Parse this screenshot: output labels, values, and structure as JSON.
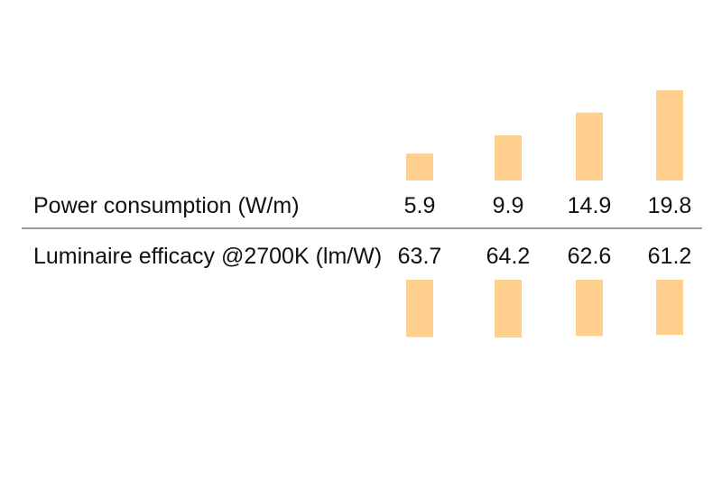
{
  "chart_data": [
    {
      "type": "bar",
      "ylabel": "Power consumption (W/m)",
      "series": [
        {
          "values": [
            5.9,
            9.9,
            14.9,
            19.8
          ]
        }
      ],
      "ylim": [
        0,
        19.8
      ],
      "grid": false,
      "bar_color": "#ffcf8d"
    },
    {
      "type": "bar",
      "ylabel": "Luminaire efficacy @2700K (lm/W)",
      "series": [
        {
          "values": [
            63.7,
            64.2,
            62.6,
            61.2
          ]
        }
      ],
      "ylim": [
        0,
        64.2
      ],
      "grid": false,
      "orientation": "downward",
      "bar_color": "#ffcf8d"
    }
  ],
  "colors": {
    "bar": "#ffcf8d",
    "divider": "#7a7a7a",
    "text": "#111111"
  }
}
